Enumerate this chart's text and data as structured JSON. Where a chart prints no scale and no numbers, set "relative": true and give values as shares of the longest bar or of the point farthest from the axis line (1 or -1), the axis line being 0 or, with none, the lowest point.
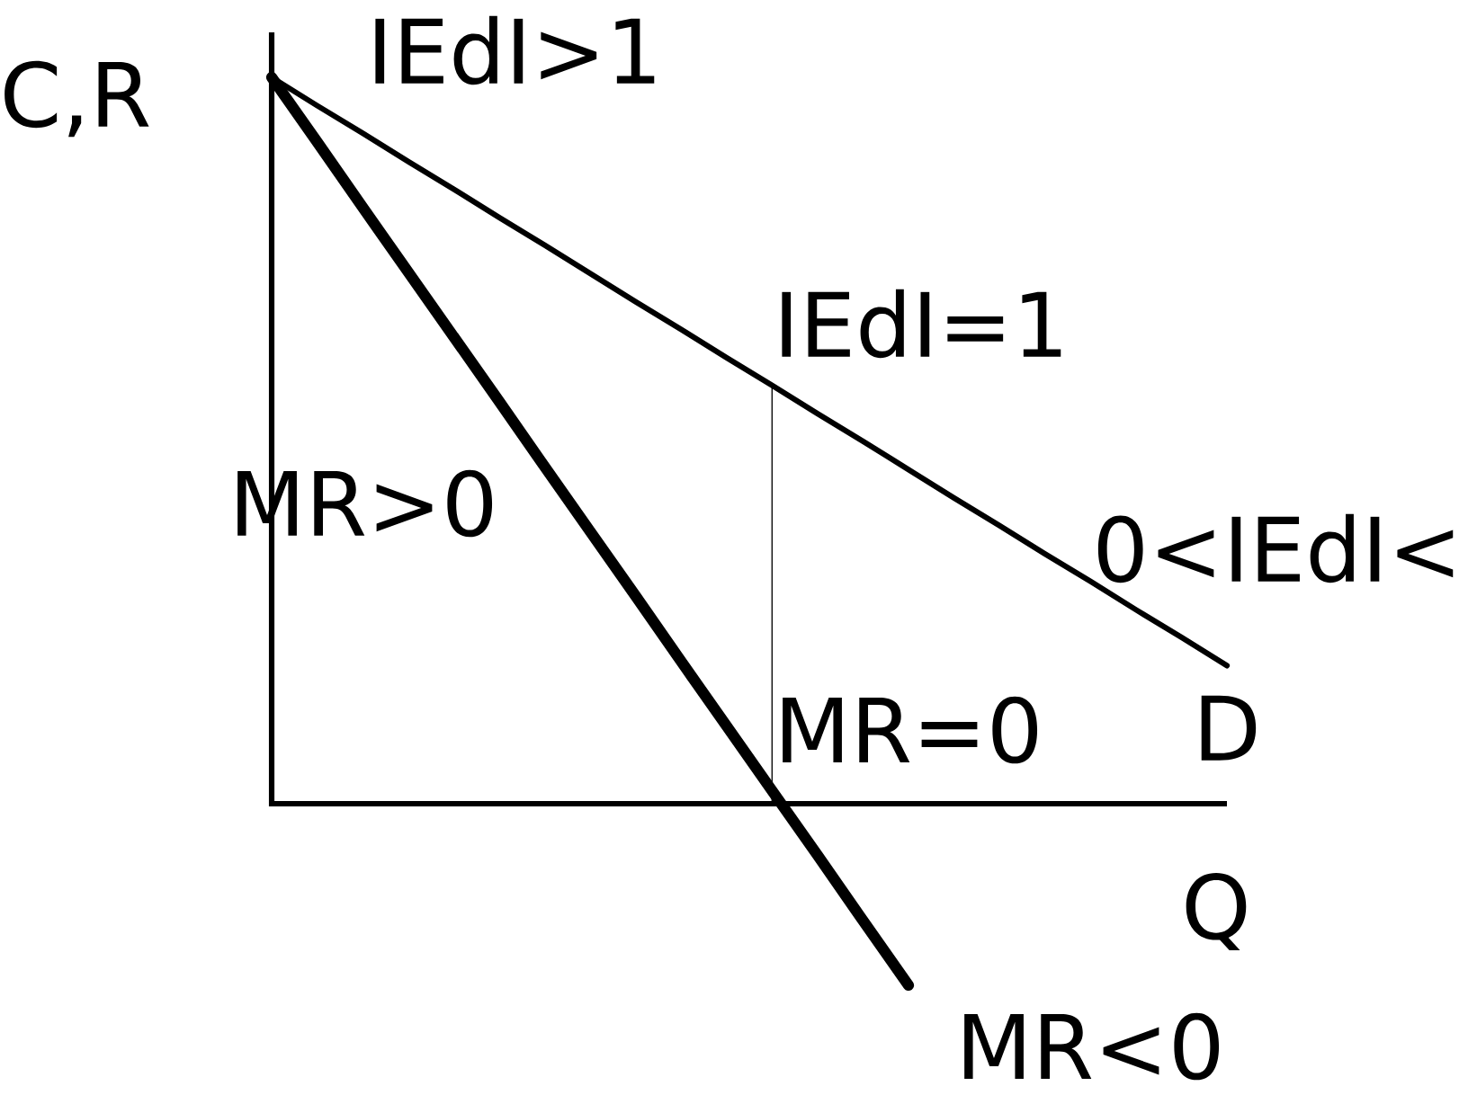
{
  "chart_data": {
    "type": "line",
    "relative": true,
    "xlabel": "Q",
    "ylabel": "C,R",
    "categories": [
      null,
      null,
      null,
      null,
      null,
      null,
      null,
      null,
      null,
      null,
      null,
      null,
      null,
      null,
      null,
      null,
      null,
      null,
      null,
      null,
      null,
      null
    ],
    "series": [
      {
        "name": "D",
        "color": "#000000",
        "values": [
          1,
          0.961,
          0.923,
          0.884,
          0.846,
          0.807,
          0.769,
          0.73,
          0.691,
          0.653,
          0.614,
          0.576,
          0.537,
          0.499,
          0.46,
          0.421,
          0.383,
          0.344,
          0.306,
          0.267,
          0.229,
          0.19
        ]
      },
      {
        "color": "#000000",
        "values": [
          1,
          0.911,
          0.821,
          0.732,
          0.643,
          0.554,
          0.464,
          0.375,
          0.286,
          0.196,
          0.107,
          0.018,
          -0.071,
          -0.161,
          -0.25,
          null,
          null,
          null,
          null,
          null,
          null,
          null
        ]
      }
    ],
    "annotations": [
      "IEdI>1",
      "IEdI=1",
      "MR>0",
      "0<IEdI<",
      "MR=0",
      "MR<0"
    ]
  }
}
